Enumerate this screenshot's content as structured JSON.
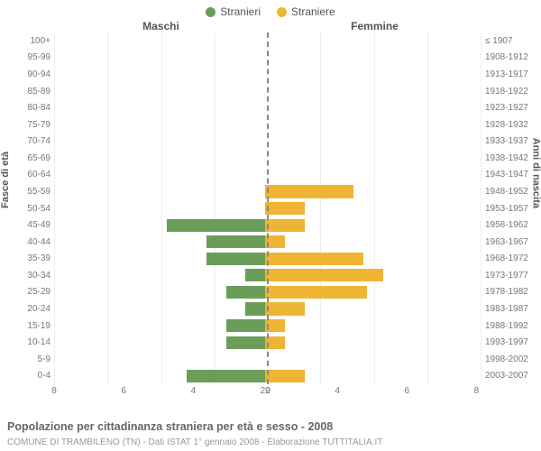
{
  "legend": {
    "male": {
      "label": "Stranieri",
      "color": "#6a9e58"
    },
    "female": {
      "label": "Straniere",
      "color": "#eeb433"
    }
  },
  "headers": {
    "left": "Maschi",
    "right": "Femmine"
  },
  "axis_titles": {
    "left": "Fasce di età",
    "right": "Anni di nascita"
  },
  "caption": "Popolazione per cittadinanza straniera per età e sesso - 2008",
  "subcaption": "COMUNE DI TRAMBILENO (TN) - Dati ISTAT 1° gennaio 2008 - Elaborazione TUTTITALIA.IT",
  "x": {
    "max": 8,
    "ticks": [
      0,
      2,
      4,
      6,
      8
    ]
  },
  "rows": [
    {
      "age": "100+",
      "birth": "≤ 1907",
      "m": 0,
      "f": 0
    },
    {
      "age": "95-99",
      "birth": "1908-1912",
      "m": 0,
      "f": 0
    },
    {
      "age": "90-94",
      "birth": "1913-1917",
      "m": 0,
      "f": 0
    },
    {
      "age": "85-89",
      "birth": "1918-1922",
      "m": 0,
      "f": 0
    },
    {
      "age": "80-84",
      "birth": "1923-1927",
      "m": 0,
      "f": 0
    },
    {
      "age": "75-79",
      "birth": "1928-1932",
      "m": 0,
      "f": 0
    },
    {
      "age": "70-74",
      "birth": "1933-1937",
      "m": 0,
      "f": 0
    },
    {
      "age": "65-69",
      "birth": "1938-1942",
      "m": 0,
      "f": 0
    },
    {
      "age": "60-64",
      "birth": "1943-1947",
      "m": 0,
      "f": 0
    },
    {
      "age": "55-59",
      "birth": "1948-1952",
      "m": 0,
      "f": 4.5
    },
    {
      "age": "50-54",
      "birth": "1953-1957",
      "m": 0,
      "f": 2
    },
    {
      "age": "45-49",
      "birth": "1958-1962",
      "m": 5,
      "f": 2
    },
    {
      "age": "40-44",
      "birth": "1963-1967",
      "m": 3,
      "f": 1
    },
    {
      "age": "35-39",
      "birth": "1968-1972",
      "m": 3,
      "f": 5
    },
    {
      "age": "30-34",
      "birth": "1973-1977",
      "m": 1,
      "f": 6
    },
    {
      "age": "25-29",
      "birth": "1978-1982",
      "m": 2,
      "f": 5.2
    },
    {
      "age": "20-24",
      "birth": "1983-1987",
      "m": 1,
      "f": 2
    },
    {
      "age": "15-19",
      "birth": "1988-1992",
      "m": 2,
      "f": 1
    },
    {
      "age": "10-14",
      "birth": "1993-1997",
      "m": 2,
      "f": 1
    },
    {
      "age": "5-9",
      "birth": "1998-2002",
      "m": 0,
      "f": 0
    },
    {
      "age": "0-4",
      "birth": "2003-2007",
      "m": 4,
      "f": 2
    }
  ],
  "style": {
    "grid_color": "#eeeeee",
    "center_line_color": "#888888",
    "background": "#ffffff",
    "tick_fontsize": 10,
    "label_color": "#777777"
  }
}
